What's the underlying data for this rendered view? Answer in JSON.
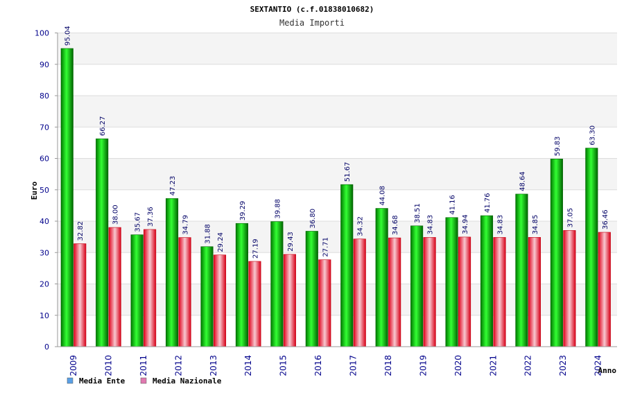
{
  "chart_data": {
    "type": "bar",
    "title": "SEXTANTIO (c.f.01838010682)",
    "subtitle": "Media Importi",
    "ylabel": "Euro",
    "xlabel": "Anno",
    "ylim": [
      0,
      100
    ],
    "yticks": [
      0,
      10,
      20,
      30,
      40,
      50,
      60,
      70,
      80,
      90,
      100
    ],
    "grid": true,
    "legend_position": "bottom-left",
    "categories": [
      "2009",
      "2010",
      "2011",
      "2012",
      "2013",
      "2014",
      "2015",
      "2016",
      "2017",
      "2018",
      "2019",
      "2020",
      "2021",
      "2022",
      "2023",
      "2024"
    ],
    "series": [
      {
        "name": "Media Ente",
        "color": "#00b000",
        "legend_color": "#5aa0e6",
        "values": [
          95.04,
          66.27,
          35.67,
          47.23,
          31.88,
          39.29,
          39.88,
          36.8,
          51.67,
          44.08,
          38.51,
          41.16,
          41.76,
          48.64,
          59.83,
          63.3
        ],
        "labels": [
          "95.04",
          "66.27",
          "35.67",
          "47.23",
          "31.88",
          "39.29",
          "39.88",
          "36.80",
          "51.67",
          "44.08",
          "38.51",
          "41.16",
          "41.76",
          "48.64",
          "59.83",
          "63.30"
        ]
      },
      {
        "name": "Media Nazionale",
        "color": "#e0202a",
        "legend_color": "#e07ab0",
        "values": [
          32.82,
          38.0,
          37.36,
          34.79,
          29.24,
          27.19,
          29.43,
          27.71,
          34.32,
          34.68,
          34.83,
          34.94,
          34.83,
          34.85,
          37.05,
          36.46
        ],
        "labels": [
          "32.82",
          "38.00",
          "37.36",
          "34.79",
          "29.24",
          "27.19",
          "29.43",
          "27.71",
          "34.32",
          "34.68",
          "34.83",
          "34.94",
          "34.83",
          "34.85",
          "37.05",
          "36.46"
        ]
      }
    ]
  }
}
